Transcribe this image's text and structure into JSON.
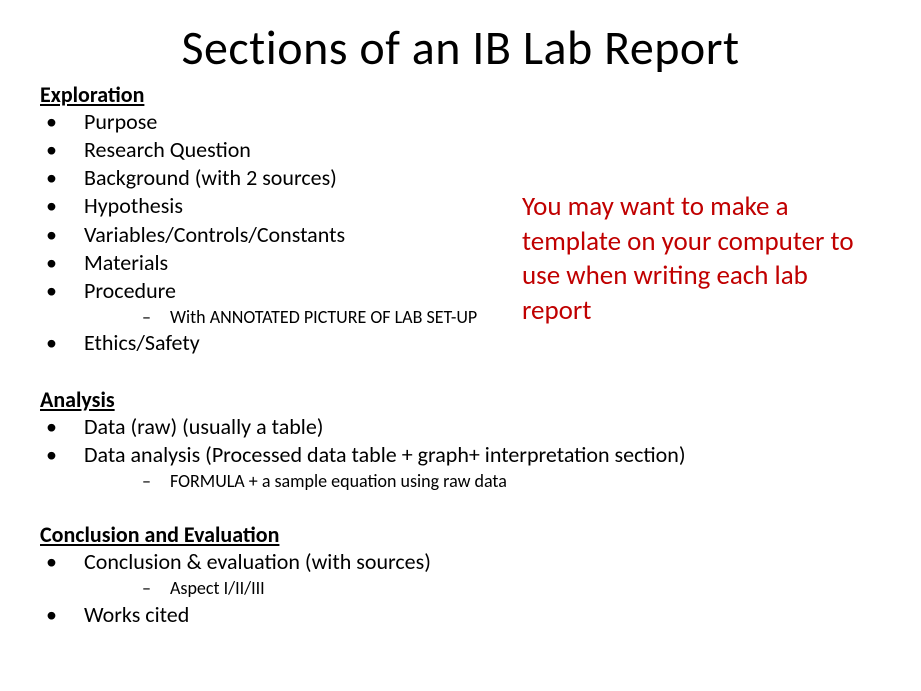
{
  "title": "Sections of an IB Lab Report",
  "callout": {
    "text": "You may want to make a template on your computer to use when writing each lab report",
    "color": "#c00000"
  },
  "sections": {
    "exploration": {
      "heading": "Exploration",
      "items": [
        {
          "text": "Purpose"
        },
        {
          "text": "Research Question"
        },
        {
          "text": "Background (with 2 sources)"
        },
        {
          "text": "Hypothesis"
        },
        {
          "text": "Variables/Controls/Constants"
        },
        {
          "text": "Materials"
        },
        {
          "text": "Procedure",
          "sub": [
            {
              "text": "With ANNOTATED PICTURE OF LAB SET-UP"
            }
          ]
        },
        {
          "text": "Ethics/Safety"
        }
      ]
    },
    "analysis": {
      "heading": "Analysis",
      "items": [
        {
          "text": "Data  (raw)  (usually a table)"
        },
        {
          "text": "Data analysis (Processed data table + graph+ interpretation section)",
          "sub": [
            {
              "text": "FORMULA + a sample equation using raw data"
            }
          ]
        }
      ]
    },
    "conclusion": {
      "heading": "Conclusion and Evaluation",
      "items": [
        {
          "text": "Conclusion & evaluation (with sources)",
          "sub": [
            {
              "text": "Aspect I/II/III"
            }
          ]
        },
        {
          "text": "Works cited"
        }
      ]
    }
  }
}
